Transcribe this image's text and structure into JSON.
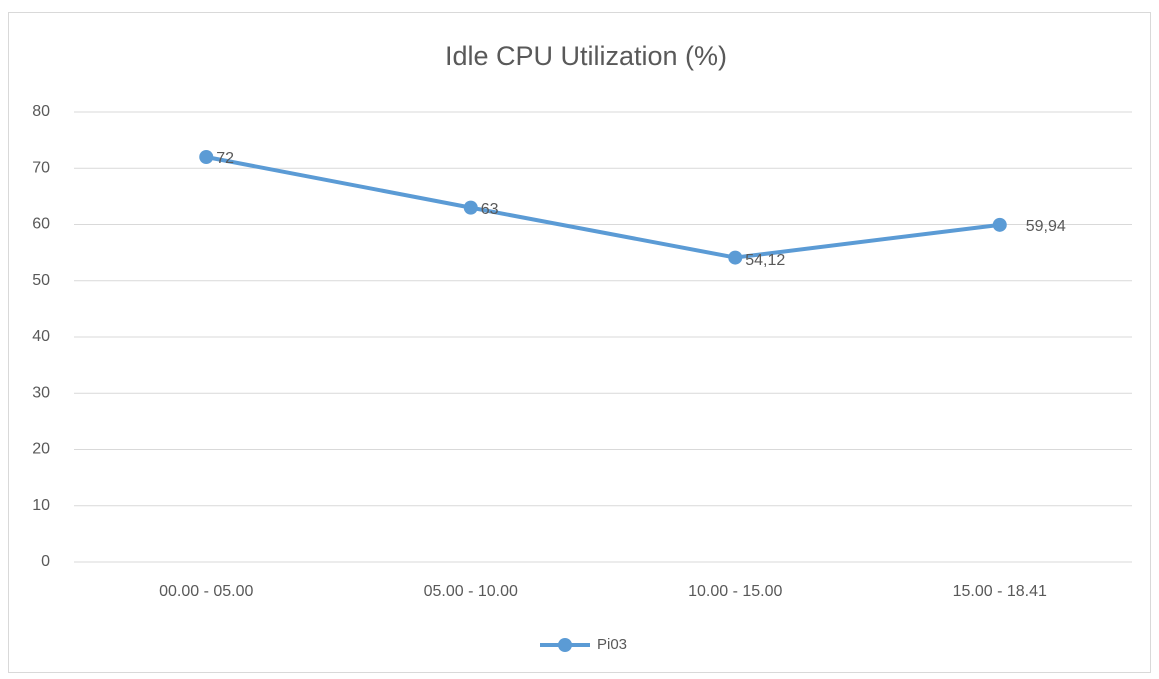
{
  "chart_data": {
    "type": "line",
    "title": "Idle CPU Utilization (%)",
    "categories": [
      "00.00 - 05.00",
      "05.00 - 10.00",
      "10.00 - 15.00",
      "15.00 - 18.41"
    ],
    "series": [
      {
        "name": "Pi03",
        "color": "#5b9bd5",
        "values": [
          72,
          63,
          54.12,
          59.94
        ],
        "value_labels": [
          "72",
          "63",
          "54,12",
          "59,94"
        ]
      }
    ],
    "ylim": [
      0,
      80
    ],
    "yticks": [
      0,
      10,
      20,
      30,
      40,
      50,
      60,
      70,
      80
    ],
    "grid": true,
    "legend": "bottom"
  }
}
